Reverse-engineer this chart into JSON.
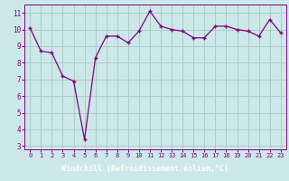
{
  "x": [
    0,
    1,
    2,
    3,
    4,
    5,
    6,
    7,
    8,
    9,
    10,
    11,
    12,
    13,
    14,
    15,
    16,
    17,
    18,
    19,
    20,
    21,
    22,
    23
  ],
  "y": [
    10.1,
    8.7,
    8.6,
    7.2,
    6.9,
    3.4,
    8.3,
    9.6,
    9.6,
    9.2,
    9.9,
    11.1,
    10.2,
    10.0,
    9.9,
    9.5,
    9.5,
    10.2,
    10.2,
    10.0,
    9.9,
    9.6,
    10.6,
    9.8
  ],
  "line_color": "#800080",
  "marker": "+",
  "bg_color": "#cce8e8",
  "grid_color": "#aacccc",
  "xlabel": "Windchill (Refroidissement éolien,°C)",
  "xlabel_bg": "#606090",
  "ylim": [
    2.8,
    11.5
  ],
  "xlim": [
    -0.5,
    23.5
  ],
  "yticks": [
    3,
    4,
    5,
    6,
    7,
    8,
    9,
    10,
    11
  ],
  "xticks": [
    0,
    1,
    2,
    3,
    4,
    5,
    6,
    7,
    8,
    9,
    10,
    11,
    12,
    13,
    14,
    15,
    16,
    17,
    18,
    19,
    20,
    21,
    22,
    23
  ],
  "tick_color": "#800080",
  "font_family": "monospace",
  "label_fontsize": 6.0,
  "tick_fontsize": 5.5
}
